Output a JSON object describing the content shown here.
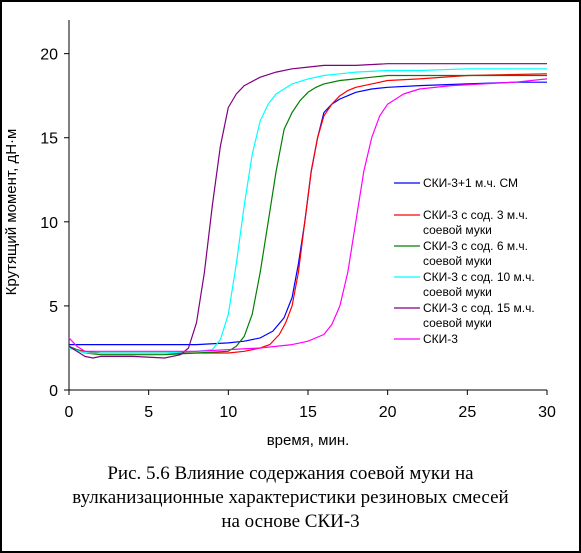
{
  "chart_data": {
    "type": "line",
    "title": "",
    "xlabel": "время, мин.",
    "ylabel": "Крутящий момент, дН·м",
    "xlim": [
      0,
      30
    ],
    "ylim": [
      0,
      22
    ],
    "x_ticks": [
      0,
      5,
      10,
      15,
      20,
      25,
      30
    ],
    "y_ticks": [
      0,
      5,
      10,
      15,
      20
    ],
    "grid": false,
    "legend_position": "center-right",
    "series": [
      {
        "name": "СКИ-3+1 м.ч. СМ",
        "color": "#0000ff",
        "x": [
          0,
          1,
          2,
          4,
          6,
          8,
          10,
          11,
          12,
          12.8,
          13.5,
          14,
          14.4,
          14.8,
          15.2,
          15.6,
          16,
          16.5,
          17,
          17.5,
          18,
          19,
          20,
          22,
          25,
          28,
          30
        ],
        "y": [
          2.7,
          2.7,
          2.7,
          2.7,
          2.7,
          2.7,
          2.8,
          2.9,
          3.1,
          3.5,
          4.3,
          5.5,
          7.5,
          10,
          13,
          15,
          16.5,
          17,
          17.3,
          17.5,
          17.7,
          17.9,
          18,
          18.1,
          18.2,
          18.3,
          18.3
        ]
      },
      {
        "name": "СКИ-3 с сод. 3 м.ч. соевой муки",
        "color": "#ff0000",
        "x": [
          0,
          1,
          2,
          3,
          4,
          6,
          8,
          10,
          11,
          12,
          12.6,
          13.2,
          13.6,
          14,
          14.4,
          14.8,
          15.2,
          15.6,
          16,
          16.5,
          17,
          17.5,
          18,
          19,
          20,
          22,
          25,
          30
        ],
        "y": [
          2.5,
          2.3,
          2.2,
          2.2,
          2.2,
          2.2,
          2.2,
          2.2,
          2.3,
          2.5,
          2.7,
          3.3,
          4,
          5,
          7,
          10,
          13,
          15,
          16.3,
          17,
          17.5,
          17.8,
          18,
          18.2,
          18.4,
          18.5,
          18.7,
          18.8
        ]
      },
      {
        "name": "СКИ-3 с сод. 6 м.ч. соевой муки",
        "color": "#008000",
        "x": [
          0,
          1,
          2,
          4,
          6,
          8,
          10,
          10.5,
          11,
          11.5,
          12,
          12.5,
          13,
          13.5,
          14,
          14.5,
          15,
          15.5,
          16,
          17,
          18,
          19,
          20,
          22,
          25,
          30
        ],
        "y": [
          2.6,
          2.2,
          2.1,
          2.1,
          2.1,
          2.2,
          2.3,
          2.6,
          3.2,
          4.5,
          7,
          10,
          13,
          15.5,
          16.5,
          17.2,
          17.7,
          18,
          18.2,
          18.4,
          18.5,
          18.6,
          18.7,
          18.7,
          18.7,
          18.7
        ]
      },
      {
        "name": "СКИ-3 с сод. 10 м.ч. соевой муки",
        "color": "#00ffff",
        "x": [
          0,
          1,
          2,
          4,
          6,
          8,
          9,
          9.5,
          10,
          10.5,
          11,
          11.5,
          12,
          12.5,
          13,
          14,
          15,
          16,
          17,
          18,
          20,
          22,
          25,
          30
        ],
        "y": [
          2.5,
          2.2,
          2.2,
          2.2,
          2.2,
          2.3,
          2.4,
          3,
          4.5,
          7.5,
          11,
          14,
          16,
          17,
          17.6,
          18.2,
          18.5,
          18.7,
          18.8,
          18.9,
          19,
          19,
          19.1,
          19.1
        ]
      },
      {
        "name": "СКИ-3 с сод. 15 м.ч. соевой муки",
        "color": "#800080",
        "x": [
          0,
          1,
          1.5,
          2,
          4,
          6,
          7,
          7.5,
          8,
          8.5,
          9,
          9.5,
          10,
          10.5,
          11,
          12,
          13,
          14,
          15,
          16,
          18,
          20,
          25,
          30
        ],
        "y": [
          2.6,
          2.0,
          1.9,
          2.0,
          2.0,
          1.9,
          2.1,
          2.5,
          4,
          7,
          11,
          14.5,
          16.8,
          17.6,
          18.1,
          18.6,
          18.9,
          19.1,
          19.2,
          19.3,
          19.3,
          19.4,
          19.4,
          19.4
        ]
      },
      {
        "name": "СКИ-3",
        "color": "#ff00ff",
        "x": [
          0,
          0.5,
          1,
          2,
          4,
          6,
          8,
          10,
          12,
          14,
          15,
          16,
          16.5,
          17,
          17.5,
          18,
          18.5,
          19,
          19.5,
          20,
          21,
          22,
          24,
          26,
          28,
          30
        ],
        "y": [
          3.1,
          2.6,
          2.3,
          2.3,
          2.3,
          2.3,
          2.3,
          2.4,
          2.5,
          2.7,
          2.9,
          3.3,
          3.9,
          5,
          7,
          10,
          13,
          15,
          16.3,
          17,
          17.6,
          17.9,
          18.1,
          18.2,
          18.3,
          18.5
        ]
      }
    ]
  },
  "caption": {
    "line1": "Рис. 5.6 Влияние содержания соевой муки на",
    "line2": "вулканизационные характеристики резиновых смесей",
    "line3": "на основе СКИ-3"
  }
}
